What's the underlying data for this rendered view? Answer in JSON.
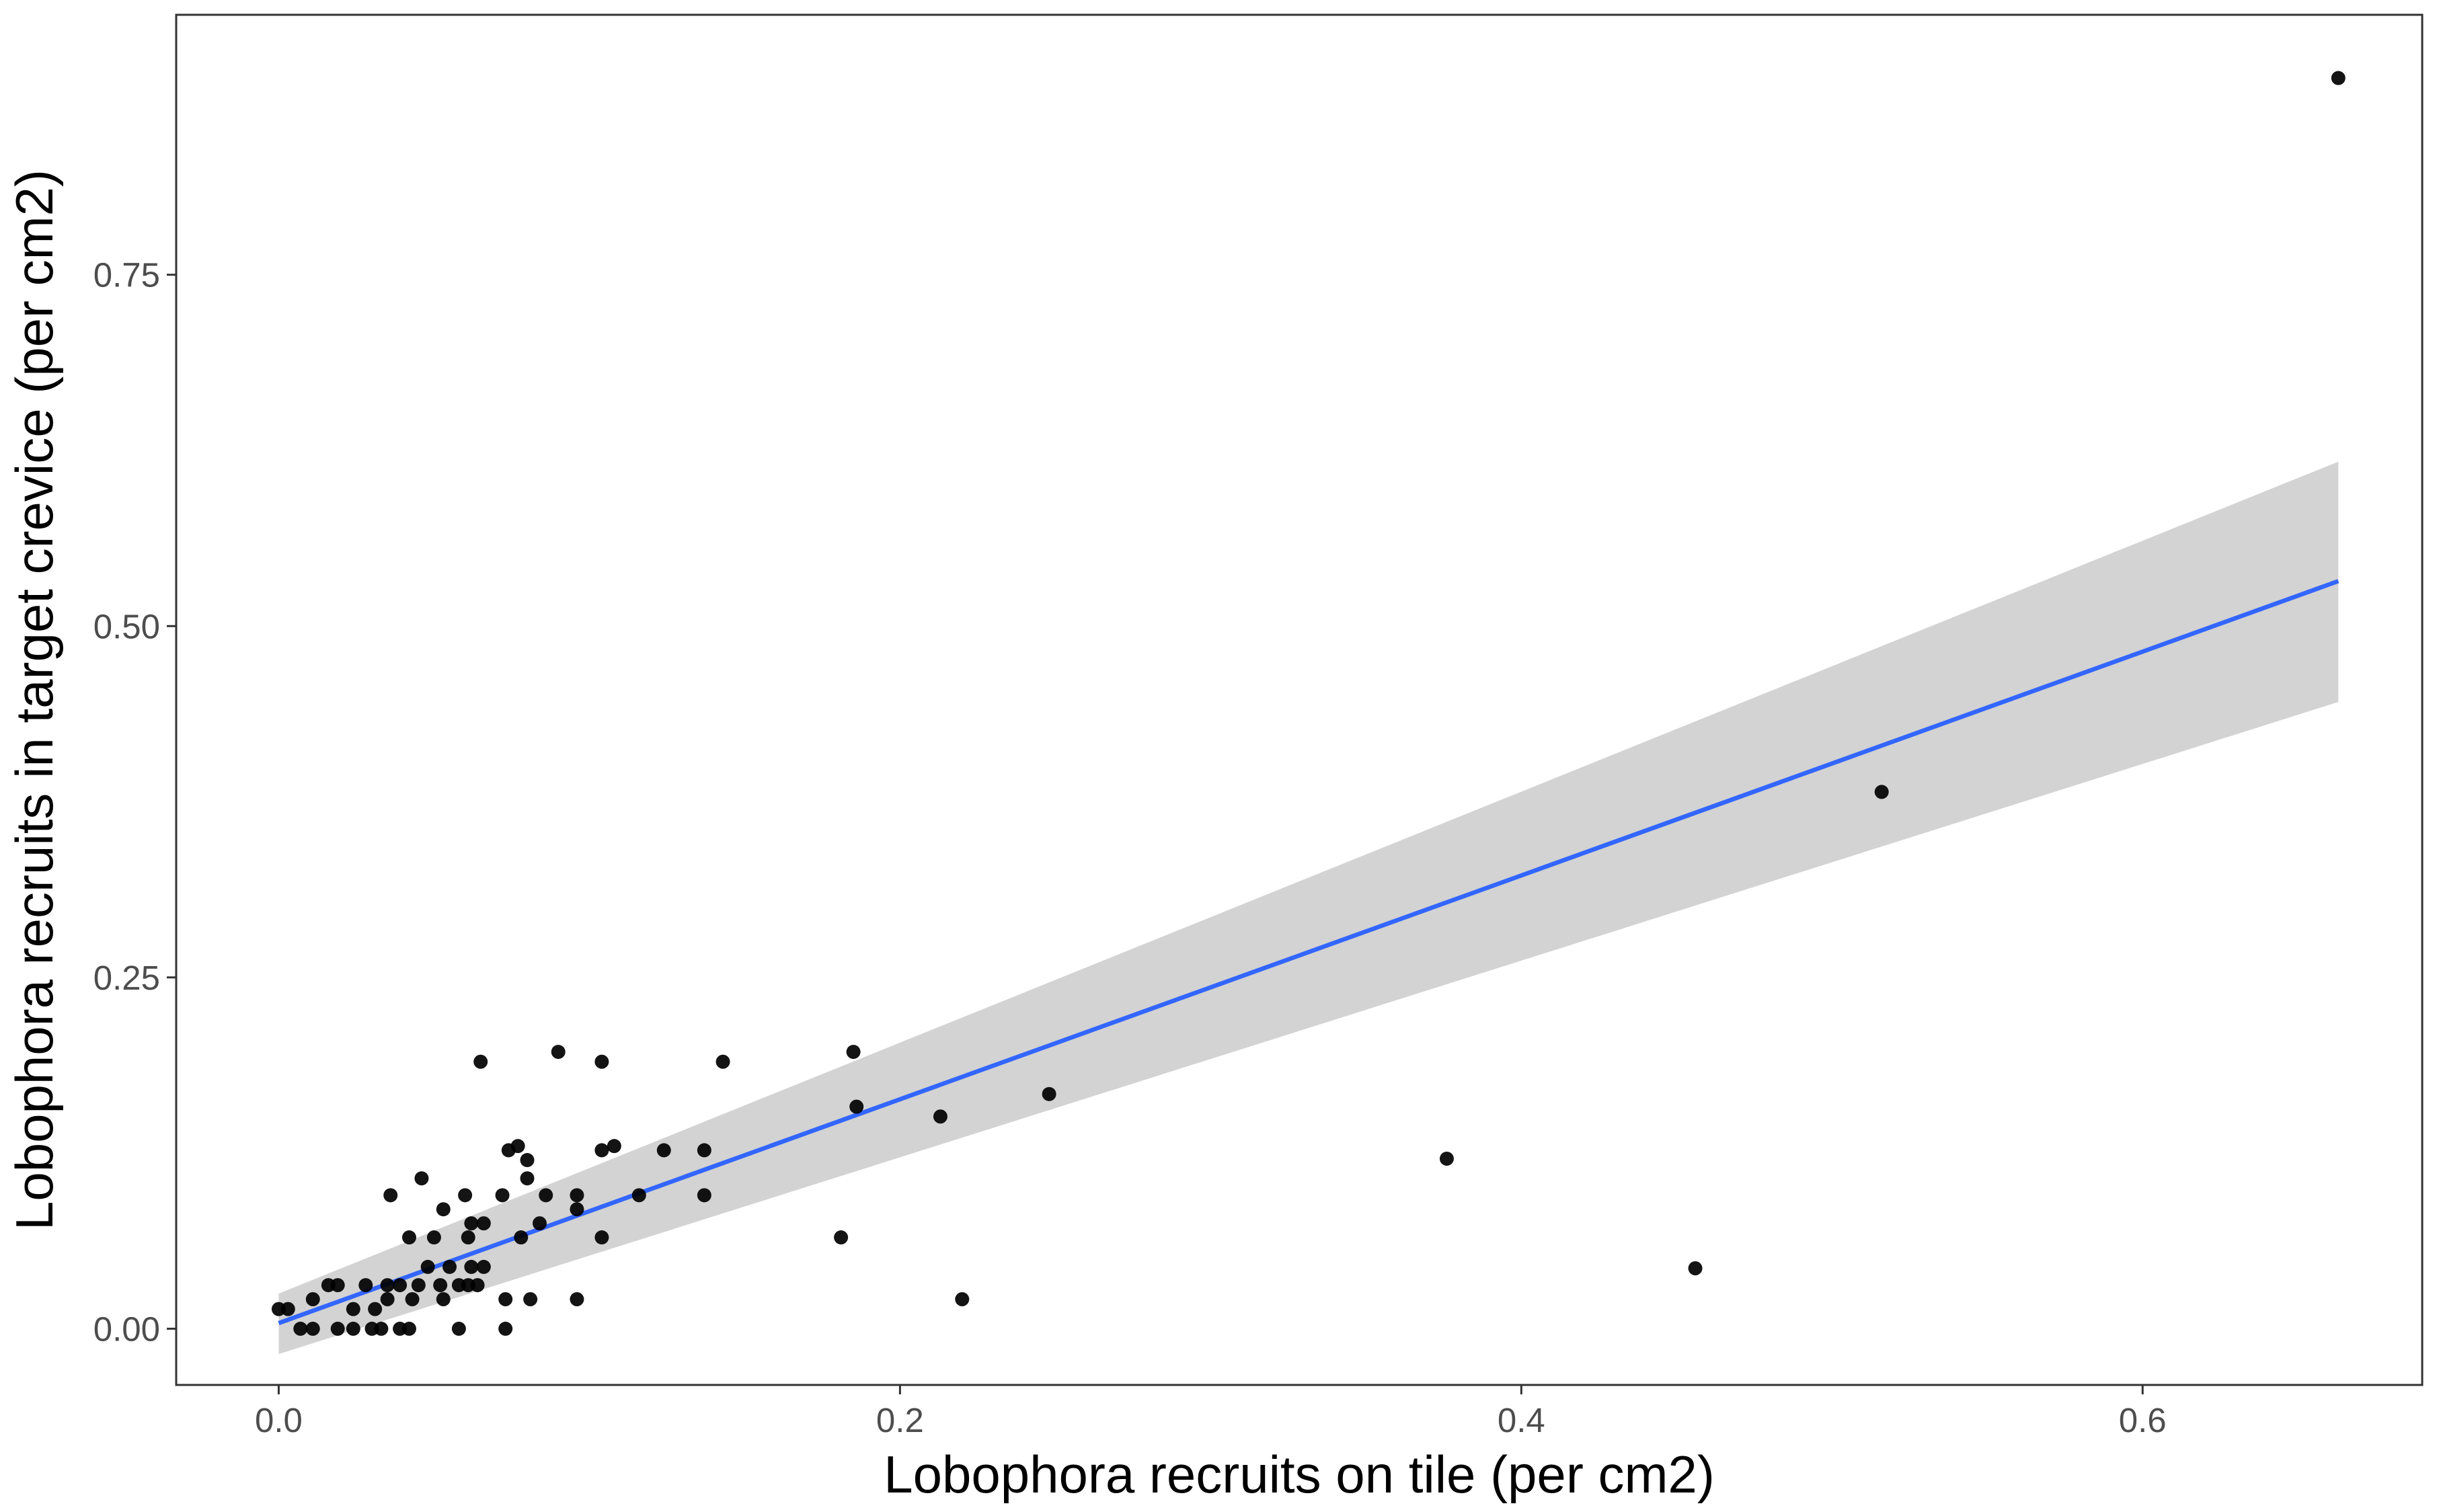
{
  "chart_data": {
    "type": "scatter",
    "title": "",
    "xlabel": "Lobophora recruits on tile (per cm2)",
    "ylabel": "Lobophora recruits in target crevice (per cm2)",
    "xlim": [
      -0.033,
      0.69
    ],
    "ylim": [
      -0.04,
      0.935
    ],
    "x_ticks": [
      {
        "value": 0.0,
        "label": "0.0"
      },
      {
        "value": 0.2,
        "label": "0.2"
      },
      {
        "value": 0.4,
        "label": "0.4"
      },
      {
        "value": 0.6,
        "label": "0.6"
      }
    ],
    "y_ticks": [
      {
        "value": 0.0,
        "label": "0.00"
      },
      {
        "value": 0.25,
        "label": "0.25"
      },
      {
        "value": 0.5,
        "label": "0.50"
      },
      {
        "value": 0.75,
        "label": "0.75"
      }
    ],
    "grid": false,
    "legend": "none",
    "series": [
      {
        "type": "points",
        "color": "#000000",
        "points": [
          {
            "x": 0.0,
            "y": 0.014
          },
          {
            "x": 0.003,
            "y": 0.014
          },
          {
            "x": 0.007,
            "y": 0.0
          },
          {
            "x": 0.011,
            "y": 0.0
          },
          {
            "x": 0.011,
            "y": 0.021
          },
          {
            "x": 0.016,
            "y": 0.031
          },
          {
            "x": 0.019,
            "y": 0.031
          },
          {
            "x": 0.019,
            "y": 0.0
          },
          {
            "x": 0.024,
            "y": 0.014
          },
          {
            "x": 0.024,
            "y": 0.0
          },
          {
            "x": 0.028,
            "y": 0.031
          },
          {
            "x": 0.03,
            "y": 0.0
          },
          {
            "x": 0.031,
            "y": 0.014
          },
          {
            "x": 0.033,
            "y": 0.0
          },
          {
            "x": 0.035,
            "y": 0.021
          },
          {
            "x": 0.035,
            "y": 0.031
          },
          {
            "x": 0.036,
            "y": 0.095
          },
          {
            "x": 0.039,
            "y": 0.0
          },
          {
            "x": 0.039,
            "y": 0.031
          },
          {
            "x": 0.042,
            "y": 0.0
          },
          {
            "x": 0.042,
            "y": 0.065
          },
          {
            "x": 0.043,
            "y": 0.021
          },
          {
            "x": 0.045,
            "y": 0.031
          },
          {
            "x": 0.046,
            "y": 0.107
          },
          {
            "x": 0.048,
            "y": 0.044
          },
          {
            "x": 0.05,
            "y": 0.065
          },
          {
            "x": 0.052,
            "y": 0.031
          },
          {
            "x": 0.053,
            "y": 0.021
          },
          {
            "x": 0.053,
            "y": 0.085
          },
          {
            "x": 0.055,
            "y": 0.044
          },
          {
            "x": 0.058,
            "y": 0.0
          },
          {
            "x": 0.058,
            "y": 0.031
          },
          {
            "x": 0.06,
            "y": 0.095
          },
          {
            "x": 0.061,
            "y": 0.065
          },
          {
            "x": 0.061,
            "y": 0.031
          },
          {
            "x": 0.062,
            "y": 0.044
          },
          {
            "x": 0.062,
            "y": 0.075
          },
          {
            "x": 0.064,
            "y": 0.031
          },
          {
            "x": 0.065,
            "y": 0.19
          },
          {
            "x": 0.066,
            "y": 0.044
          },
          {
            "x": 0.066,
            "y": 0.075
          },
          {
            "x": 0.072,
            "y": 0.095
          },
          {
            "x": 0.073,
            "y": 0.0
          },
          {
            "x": 0.073,
            "y": 0.021
          },
          {
            "x": 0.074,
            "y": 0.127
          },
          {
            "x": 0.077,
            "y": 0.13
          },
          {
            "x": 0.078,
            "y": 0.065
          },
          {
            "x": 0.08,
            "y": 0.107
          },
          {
            "x": 0.08,
            "y": 0.12
          },
          {
            "x": 0.081,
            "y": 0.021
          },
          {
            "x": 0.084,
            "y": 0.075
          },
          {
            "x": 0.086,
            "y": 0.095
          },
          {
            "x": 0.09,
            "y": 0.197
          },
          {
            "x": 0.096,
            "y": 0.021
          },
          {
            "x": 0.096,
            "y": 0.085
          },
          {
            "x": 0.096,
            "y": 0.095
          },
          {
            "x": 0.104,
            "y": 0.19
          },
          {
            "x": 0.104,
            "y": 0.065
          },
          {
            "x": 0.104,
            "y": 0.127
          },
          {
            "x": 0.108,
            "y": 0.13
          },
          {
            "x": 0.116,
            "y": 0.095
          },
          {
            "x": 0.124,
            "y": 0.127
          },
          {
            "x": 0.137,
            "y": 0.095
          },
          {
            "x": 0.137,
            "y": 0.127
          },
          {
            "x": 0.143,
            "y": 0.19
          },
          {
            "x": 0.181,
            "y": 0.065
          },
          {
            "x": 0.185,
            "y": 0.197
          },
          {
            "x": 0.186,
            "y": 0.158
          },
          {
            "x": 0.213,
            "y": 0.151
          },
          {
            "x": 0.22,
            "y": 0.021
          },
          {
            "x": 0.248,
            "y": 0.167
          },
          {
            "x": 0.376,
            "y": 0.121
          },
          {
            "x": 0.456,
            "y": 0.043
          },
          {
            "x": 0.516,
            "y": 0.382
          },
          {
            "x": 0.663,
            "y": 0.89
          }
        ]
      },
      {
        "type": "regression-line",
        "color": "#3366FF",
        "x": [
          0.0,
          0.663
        ],
        "y": [
          0.004,
          0.532
        ]
      },
      {
        "type": "confidence-band",
        "color": "#D3D3D3",
        "x": [
          0.0,
          0.663
        ],
        "lower": [
          -0.018,
          0.446
        ],
        "upper": [
          0.025,
          0.617
        ]
      }
    ]
  }
}
